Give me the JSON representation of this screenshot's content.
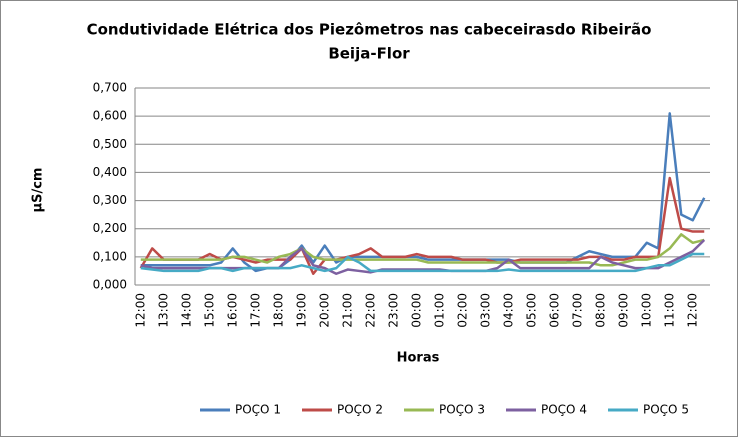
{
  "chart_data": {
    "type": "line",
    "title": [
      "Condutividade Elétrica dos Piezômetros nas cabeceirasdo Ribeirão",
      "Beija-Flor"
    ],
    "x_label": "Horas",
    "y_label": "µS/cm",
    "categories": [
      "12:00",
      null,
      "13:00",
      null,
      "14:00",
      null,
      "15:00",
      null,
      "16:00",
      null,
      "17:00",
      null,
      "18:00",
      null,
      "19:00",
      null,
      "20:00",
      null,
      "21:00",
      null,
      "22:00",
      null,
      "23:00",
      null,
      "00:00",
      null,
      "01:00",
      null,
      "02:00",
      null,
      "03:00",
      null,
      "04:00",
      null,
      "05:00",
      null,
      "06:00",
      null,
      "07:00",
      null,
      "08:00",
      null,
      "09:00",
      null,
      "10:00",
      null,
      "11:00",
      null,
      "12:00",
      null
    ],
    "ylim": [
      0,
      0.7
    ],
    "yticks": [
      {
        "value": 0,
        "label": "0,000"
      },
      {
        "value": 0.1,
        "label": "0,100"
      },
      {
        "value": 0.2,
        "label": "0,200"
      },
      {
        "value": 0.3,
        "label": "0,300"
      },
      {
        "value": 0.4,
        "label": "0,400"
      },
      {
        "value": 0.5,
        "label": "0,500"
      },
      {
        "value": 0.6,
        "label": "0,600"
      },
      {
        "value": 0.7,
        "label": "0,700"
      }
    ],
    "grid": true,
    "legend": "bottom",
    "series": [
      {
        "name": "POÇO 1",
        "color": "#4a7ebb",
        "values": [
          0.07,
          0.07,
          0.07,
          0.07,
          0.07,
          0.07,
          0.07,
          0.08,
          0.13,
          0.08,
          0.05,
          0.06,
          0.06,
          0.09,
          0.14,
          0.08,
          0.14,
          0.08,
          0.1,
          0.1,
          0.1,
          0.1,
          0.1,
          0.1,
          0.1,
          0.09,
          0.09,
          0.09,
          0.09,
          0.09,
          0.09,
          0.09,
          0.09,
          0.08,
          0.08,
          0.08,
          0.08,
          0.08,
          0.1,
          0.12,
          0.11,
          0.1,
          0.1,
          0.1,
          0.15,
          0.13,
          0.61,
          0.25,
          0.23,
          0.31
        ]
      },
      {
        "name": "POÇO 2",
        "color": "#be4b48",
        "values": [
          0.06,
          0.13,
          0.09,
          0.09,
          0.09,
          0.09,
          0.11,
          0.09,
          0.1,
          0.09,
          0.08,
          0.09,
          0.09,
          0.09,
          0.13,
          0.04,
          0.09,
          0.09,
          0.1,
          0.11,
          0.13,
          0.1,
          0.1,
          0.1,
          0.11,
          0.1,
          0.1,
          0.1,
          0.09,
          0.09,
          0.09,
          0.08,
          0.08,
          0.09,
          0.09,
          0.09,
          0.09,
          0.09,
          0.09,
          0.1,
          0.1,
          0.09,
          0.09,
          0.1,
          0.1,
          0.1,
          0.38,
          0.2,
          0.19,
          0.19
        ]
      },
      {
        "name": "POÇO 3",
        "color": "#98b954",
        "values": [
          0.09,
          0.09,
          0.09,
          0.09,
          0.09,
          0.09,
          0.09,
          0.09,
          0.1,
          0.1,
          0.09,
          0.08,
          0.1,
          0.11,
          0.13,
          0.1,
          0.09,
          0.09,
          0.09,
          0.09,
          0.09,
          0.09,
          0.09,
          0.09,
          0.09,
          0.08,
          0.08,
          0.08,
          0.08,
          0.08,
          0.08,
          0.08,
          0.08,
          0.08,
          0.08,
          0.08,
          0.08,
          0.08,
          0.08,
          0.08,
          0.07,
          0.07,
          0.08,
          0.09,
          0.09,
          0.1,
          0.13,
          0.18,
          0.15,
          0.16
        ]
      },
      {
        "name": "POÇO 4",
        "color": "#7d60a0",
        "values": [
          0.07,
          0.06,
          0.06,
          0.06,
          0.06,
          0.06,
          0.06,
          0.06,
          0.06,
          0.06,
          0.06,
          0.06,
          0.06,
          0.1,
          0.13,
          0.07,
          0.06,
          0.04,
          0.055,
          0.05,
          0.045,
          0.055,
          0.055,
          0.055,
          0.055,
          0.055,
          0.055,
          0.05,
          0.05,
          0.05,
          0.05,
          0.06,
          0.09,
          0.06,
          0.06,
          0.06,
          0.06,
          0.06,
          0.06,
          0.06,
          0.1,
          0.08,
          0.07,
          0.06,
          0.06,
          0.06,
          0.08,
          0.1,
          0.12,
          0.16
        ]
      },
      {
        "name": "POÇO 5",
        "color": "#46aac5",
        "values": [
          0.06,
          0.055,
          0.05,
          0.05,
          0.05,
          0.05,
          0.06,
          0.06,
          0.05,
          0.06,
          0.06,
          0.06,
          0.06,
          0.06,
          0.07,
          0.06,
          0.05,
          0.06,
          0.1,
          0.08,
          0.05,
          0.05,
          0.05,
          0.05,
          0.05,
          0.05,
          0.05,
          0.05,
          0.05,
          0.05,
          0.05,
          0.05,
          0.055,
          0.05,
          0.05,
          0.05,
          0.05,
          0.05,
          0.05,
          0.05,
          0.05,
          0.05,
          0.05,
          0.05,
          0.06,
          0.07,
          0.07,
          0.09,
          0.11,
          0.11
        ]
      }
    ]
  }
}
